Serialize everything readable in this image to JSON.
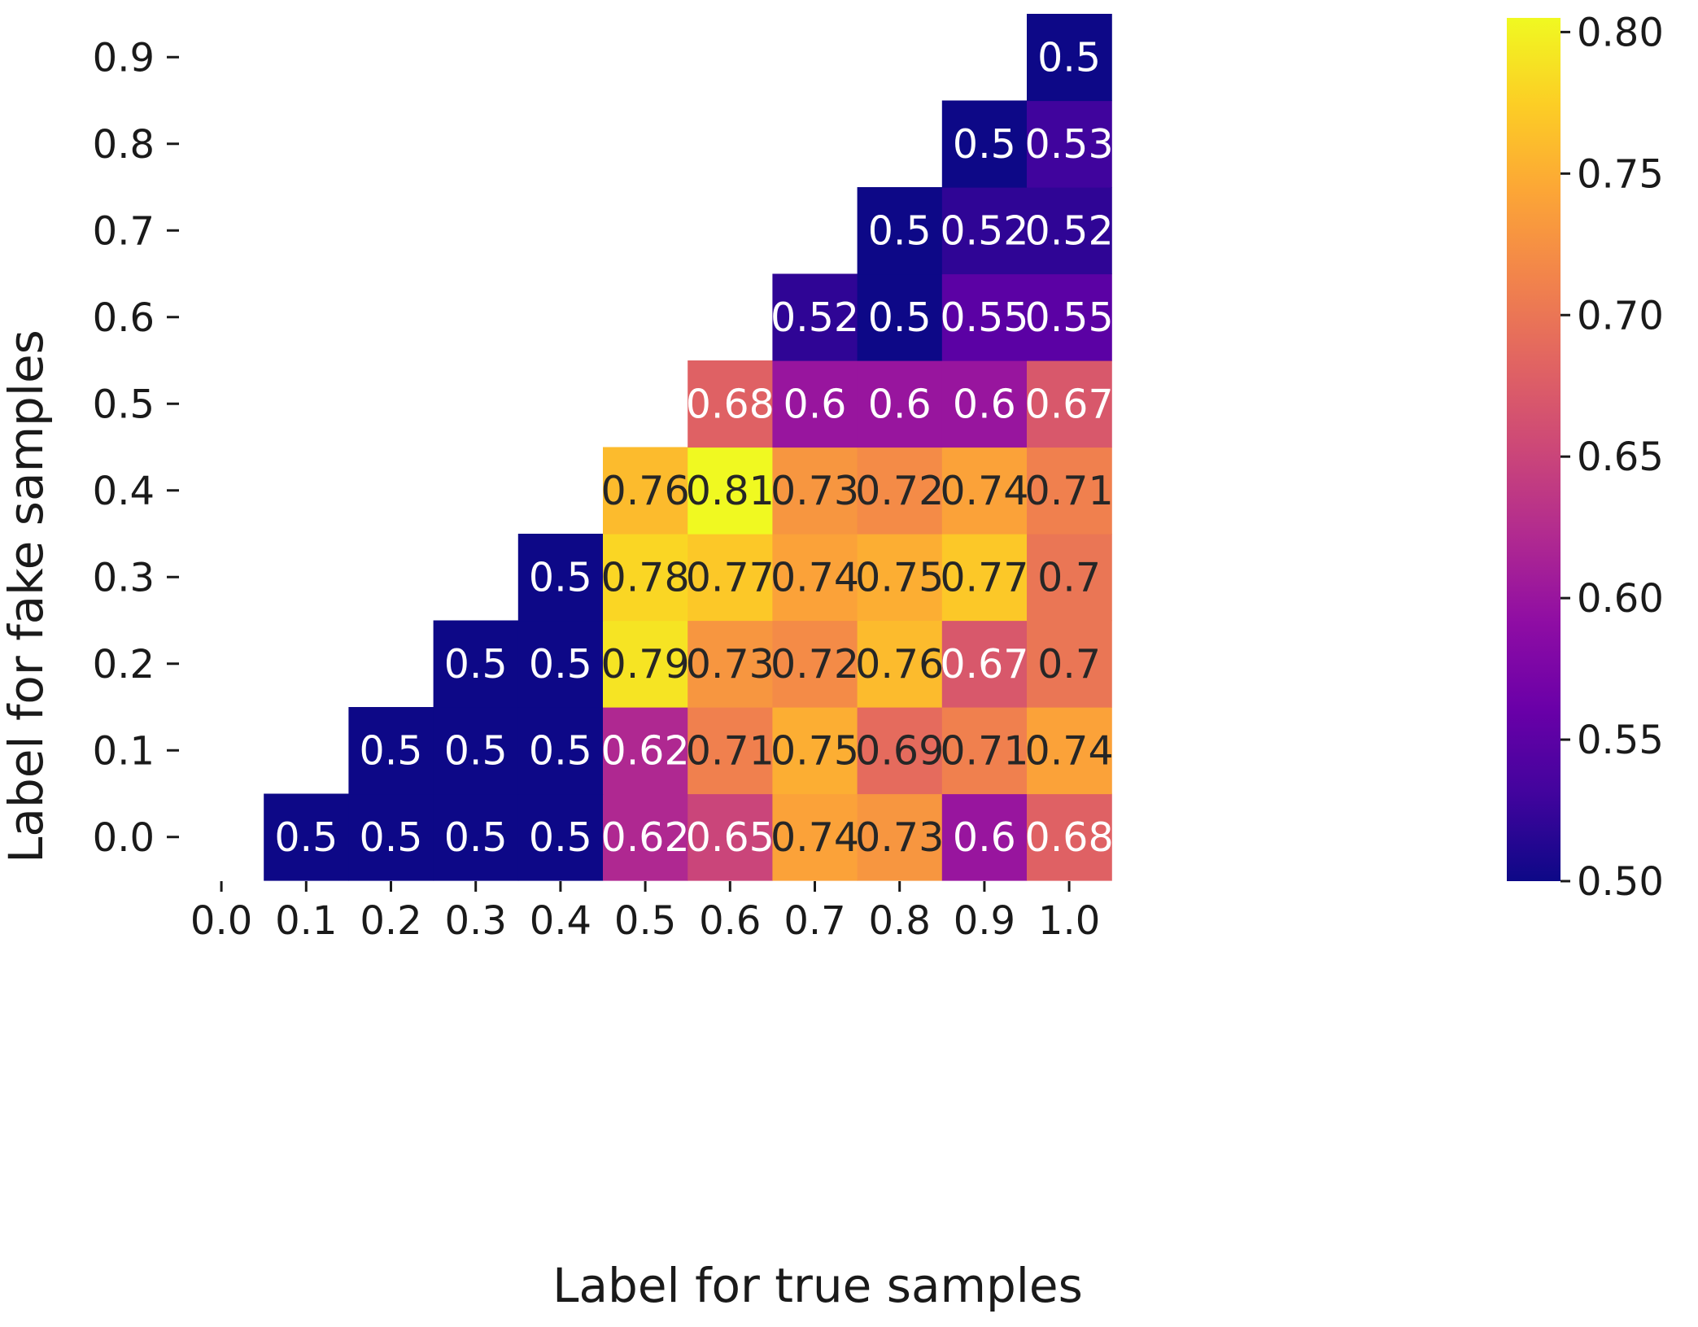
{
  "chart_data": {
    "type": "heatmap",
    "xlabel": "Label for true samples",
    "ylabel": "Label for fake samples",
    "x_categories": [
      "0.0",
      "0.1",
      "0.2",
      "0.3",
      "0.4",
      "0.5",
      "0.6",
      "0.7",
      "0.8",
      "0.9",
      "1.0"
    ],
    "y_categories": [
      "0.0",
      "0.1",
      "0.2",
      "0.3",
      "0.4",
      "0.5",
      "0.6",
      "0.7",
      "0.8",
      "0.9"
    ],
    "values": [
      [
        null,
        0.5,
        0.5,
        0.5,
        0.5,
        0.62,
        0.65,
        0.74,
        0.73,
        0.6,
        0.68
      ],
      [
        null,
        null,
        0.5,
        0.5,
        0.5,
        0.62,
        0.71,
        0.75,
        0.69,
        0.71,
        0.74
      ],
      [
        null,
        null,
        null,
        0.5,
        0.5,
        0.79,
        0.73,
        0.72,
        0.76,
        0.67,
        0.7
      ],
      [
        null,
        null,
        null,
        null,
        0.5,
        0.78,
        0.77,
        0.74,
        0.75,
        0.77,
        0.7
      ],
      [
        null,
        null,
        null,
        null,
        null,
        0.76,
        0.81,
        0.73,
        0.72,
        0.74,
        0.71
      ],
      [
        null,
        null,
        null,
        null,
        null,
        null,
        0.68,
        0.6,
        0.6,
        0.6,
        0.67
      ],
      [
        null,
        null,
        null,
        null,
        null,
        null,
        null,
        0.52,
        0.5,
        0.55,
        0.55
      ],
      [
        null,
        null,
        null,
        null,
        null,
        null,
        null,
        null,
        0.5,
        0.52,
        0.52
      ],
      [
        null,
        null,
        null,
        null,
        null,
        null,
        null,
        null,
        null,
        0.5,
        0.53
      ],
      [
        null,
        null,
        null,
        null,
        null,
        null,
        null,
        null,
        null,
        null,
        0.5
      ]
    ],
    "colormap": "plasma",
    "colorbar": {
      "range": [
        0.5,
        0.805
      ],
      "ticks": [
        "0.50",
        "0.55",
        "0.60",
        "0.65",
        "0.70",
        "0.75",
        "0.80"
      ]
    },
    "grid": false,
    "annotated": true
  }
}
